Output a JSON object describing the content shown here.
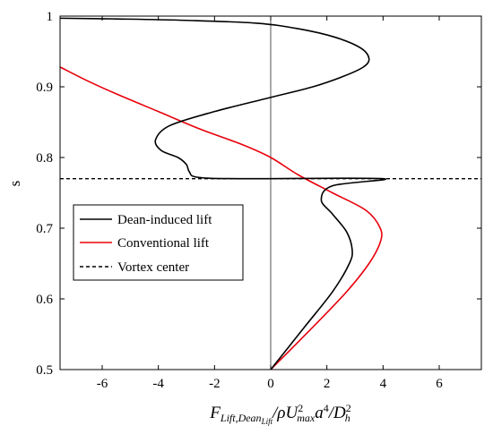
{
  "chart_data": {
    "type": "line",
    "title": "",
    "xlabel": {
      "main": "F",
      "main_sub": "Lift,Dean",
      "main_sub_sub": "Lift",
      "sep1": "/ρU",
      "u_sup": "2",
      "u_sub": "max",
      "a": "a",
      "a_sup": "4",
      "sep2": "/D",
      "d_sup": "2",
      "d_sub": "h"
    },
    "ylabel": "s",
    "xlim": [
      -7.5,
      7.5
    ],
    "ylim": [
      0.5,
      1.0
    ],
    "x_ticks": [
      -6,
      -4,
      -2,
      0,
      2,
      4,
      6
    ],
    "x_tick_labels": [
      "-6",
      "-4",
      "-2",
      "0",
      "2",
      "4",
      "6"
    ],
    "y_ticks": [
      0.5,
      0.6,
      0.7,
      0.8,
      0.9,
      1.0
    ],
    "y_tick_labels": [
      "0.5",
      "0.6",
      "0.7",
      "0.8",
      "0.9",
      "1"
    ],
    "grid": false,
    "legend_position": "center-left",
    "series": [
      {
        "name": "Dean-induced lift",
        "color": "#000000",
        "dash": "solid",
        "points": [
          [
            0.0,
            0.5
          ],
          [
            1.2,
            0.56
          ],
          [
            2.2,
            0.61
          ],
          [
            2.8,
            0.65
          ],
          [
            2.9,
            0.67
          ],
          [
            2.7,
            0.695
          ],
          [
            2.2,
            0.72
          ],
          [
            1.8,
            0.74
          ],
          [
            2.2,
            0.76
          ],
          [
            4.0,
            0.77
          ],
          [
            -1.0,
            0.77
          ],
          [
            -2.6,
            0.772
          ],
          [
            -2.9,
            0.78
          ],
          [
            -3.0,
            0.79
          ],
          [
            -3.3,
            0.8
          ],
          [
            -3.9,
            0.81
          ],
          [
            -4.1,
            0.825
          ],
          [
            -3.6,
            0.845
          ],
          [
            -2.0,
            0.865
          ],
          [
            0.0,
            0.885
          ],
          [
            1.5,
            0.9
          ],
          [
            2.6,
            0.915
          ],
          [
            3.3,
            0.928
          ],
          [
            3.5,
            0.94
          ],
          [
            3.2,
            0.955
          ],
          [
            2.3,
            0.97
          ],
          [
            1.0,
            0.982
          ],
          [
            -0.5,
            0.99
          ],
          [
            -3.0,
            0.994
          ],
          [
            -5.5,
            0.996
          ],
          [
            -7.5,
            0.997
          ]
        ]
      },
      {
        "name": "Conventional lift",
        "color": "#e8000b",
        "dash": "solid",
        "points": [
          [
            0.0,
            0.5
          ],
          [
            1.5,
            0.56
          ],
          [
            2.7,
            0.61
          ],
          [
            3.5,
            0.65
          ],
          [
            3.9,
            0.68
          ],
          [
            3.9,
            0.7
          ],
          [
            3.4,
            0.725
          ],
          [
            2.2,
            0.75
          ],
          [
            1.0,
            0.775
          ],
          [
            0.0,
            0.8
          ],
          [
            -1.0,
            0.818
          ],
          [
            -2.5,
            0.84
          ],
          [
            -4.0,
            0.865
          ],
          [
            -5.5,
            0.89
          ],
          [
            -6.5,
            0.908
          ],
          [
            -7.5,
            0.928
          ]
        ]
      },
      {
        "name": "Vortex center",
        "color": "#000000",
        "dash": "dashed",
        "points": [
          [
            -7.5,
            0.77
          ],
          [
            7.5,
            0.77
          ]
        ]
      }
    ]
  }
}
